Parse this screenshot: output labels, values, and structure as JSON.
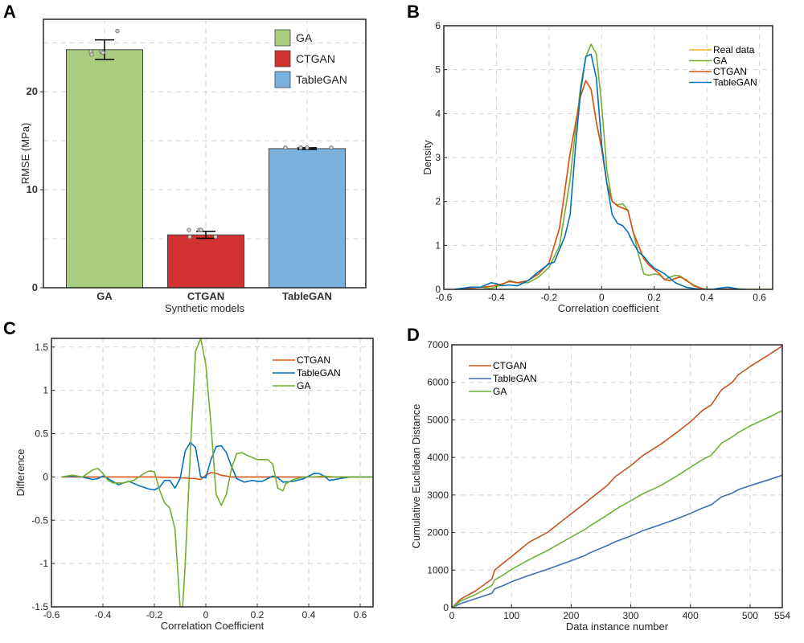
{
  "chart_data": [
    {
      "panel": "A",
      "type": "bar",
      "title": "",
      "xlabel": "Synthetic models",
      "ylabel": "RMSE (MPa)",
      "categories": [
        "GA",
        "CTGAN",
        "TableGAN"
      ],
      "values": [
        24.3,
        5.4,
        14.2
      ],
      "errors": [
        1.0,
        0.35,
        0.08
      ],
      "points": [
        [
          24.1,
          24.1,
          24.0,
          23.8,
          26.2
        ],
        [
          5.9,
          5.9,
          5.9,
          5.2,
          5.2
        ],
        [
          14.3,
          14.3,
          14.3,
          14.3,
          14.3
        ]
      ],
      "colors": [
        "#a9cd7e",
        "#d33330",
        "#7ab1dd"
      ],
      "ylim": [
        0,
        27.4
      ],
      "yticks": [
        0,
        10,
        20
      ],
      "legend": [
        "GA",
        "CTGAN",
        "TableGAN"
      ],
      "legend_position": "top-right",
      "grid": true
    },
    {
      "panel": "B",
      "type": "line",
      "xlabel": "Correlation coefficient",
      "ylabel": "Density",
      "xlim": [
        -0.6,
        0.65
      ],
      "ylim": [
        0,
        6
      ],
      "xticks": [
        -0.6,
        -0.4,
        -0.2,
        0,
        0.2,
        0.4,
        0.6
      ],
      "yticks": [
        0,
        1,
        2,
        3,
        4,
        5,
        6
      ],
      "legend_position": "top-right",
      "grid": true,
      "series": [
        {
          "name": "Real data",
          "color": "#edb120",
          "x": [
            -0.56,
            -0.5,
            -0.46,
            -0.42,
            -0.38,
            -0.35,
            -0.32,
            -0.28,
            -0.24,
            -0.2,
            -0.16,
            -0.12,
            -0.08,
            -0.06,
            -0.04,
            -0.02,
            0,
            0.02,
            0.04,
            0.06,
            0.08,
            0.1,
            0.12,
            0.14,
            0.16,
            0.18,
            0.2,
            0.22,
            0.24,
            0.26,
            0.28,
            0.3,
            0.32,
            0.35,
            0.38,
            0.4,
            0.45,
            0.5,
            0.55,
            0.6,
            0.65
          ],
          "y": [
            0,
            0.03,
            0.05,
            0.07,
            0.12,
            0.18,
            0.15,
            0.2,
            0.35,
            0.6,
            1.4,
            3.1,
            4.4,
            4.75,
            4.55,
            3.8,
            3.2,
            2.4,
            2.0,
            1.9,
            1.85,
            1.8,
            1.3,
            1.0,
            0.7,
            0.55,
            0.45,
            0.35,
            0.22,
            0.2,
            0.25,
            0.28,
            0.22,
            0.08,
            0.02,
            0,
            0,
            0.02,
            0,
            0,
            0
          ]
        },
        {
          "name": "GA",
          "color": "#77ac30",
          "x": [
            -0.56,
            -0.5,
            -0.46,
            -0.42,
            -0.38,
            -0.35,
            -0.32,
            -0.28,
            -0.24,
            -0.2,
            -0.16,
            -0.12,
            -0.1,
            -0.08,
            -0.06,
            -0.04,
            -0.02,
            0,
            0.02,
            0.04,
            0.06,
            0.08,
            0.1,
            0.12,
            0.14,
            0.16,
            0.18,
            0.2,
            0.22,
            0.24,
            0.26,
            0.28,
            0.3,
            0.32,
            0.35,
            0.38,
            0.4,
            0.5,
            0.55
          ],
          "y": [
            0,
            0.03,
            0.05,
            0.02,
            0.1,
            0.2,
            0.15,
            0.15,
            0.28,
            0.5,
            1.0,
            2.5,
            3.6,
            4.6,
            5.3,
            5.58,
            5.35,
            4.2,
            2.7,
            2.0,
            1.92,
            1.95,
            1.8,
            1.3,
            0.8,
            0.35,
            0.32,
            0.35,
            0.33,
            0.22,
            0.28,
            0.32,
            0.3,
            0.2,
            0.1,
            0.02,
            0,
            0,
            0
          ]
        },
        {
          "name": "CTGAN",
          "color": "#d95319",
          "x": [
            -0.56,
            -0.5,
            -0.46,
            -0.42,
            -0.38,
            -0.35,
            -0.32,
            -0.28,
            -0.24,
            -0.2,
            -0.16,
            -0.12,
            -0.08,
            -0.06,
            -0.04,
            -0.02,
            0,
            0.02,
            0.04,
            0.06,
            0.08,
            0.1,
            0.12,
            0.14,
            0.16,
            0.18,
            0.2,
            0.22,
            0.24,
            0.26,
            0.28,
            0.3,
            0.32,
            0.35,
            0.38,
            0.4,
            0.45,
            0.5,
            0.55
          ],
          "y": [
            0,
            0.03,
            0.05,
            0.07,
            0.12,
            0.18,
            0.15,
            0.2,
            0.35,
            0.6,
            1.4,
            3.1,
            4.4,
            4.75,
            4.55,
            3.8,
            3.2,
            2.4,
            2.0,
            1.9,
            1.85,
            1.8,
            1.3,
            1.0,
            0.7,
            0.55,
            0.45,
            0.35,
            0.22,
            0.2,
            0.25,
            0.28,
            0.22,
            0.08,
            0.02,
            0,
            0,
            0.01,
            0
          ]
        },
        {
          "name": "TableGAN",
          "color": "#0072bd",
          "x": [
            -0.56,
            -0.5,
            -0.46,
            -0.42,
            -0.4,
            -0.38,
            -0.35,
            -0.32,
            -0.28,
            -0.24,
            -0.2,
            -0.18,
            -0.14,
            -0.12,
            -0.1,
            -0.08,
            -0.06,
            -0.04,
            -0.02,
            0,
            0.02,
            0.04,
            0.06,
            0.08,
            0.1,
            0.12,
            0.14,
            0.16,
            0.18,
            0.2,
            0.22,
            0.24,
            0.26,
            0.28,
            0.3,
            0.32,
            0.35,
            0.38,
            0.42,
            0.45,
            0.48,
            0.52,
            0.55
          ],
          "y": [
            0,
            0.05,
            0.05,
            0.15,
            0.13,
            0.08,
            0.1,
            0.08,
            0.2,
            0.4,
            0.58,
            0.62,
            1.2,
            1.7,
            3.2,
            4.5,
            5.3,
            5.35,
            4.8,
            3.3,
            2.4,
            1.7,
            1.5,
            1.45,
            1.3,
            1.05,
            0.85,
            0.75,
            0.6,
            0.48,
            0.42,
            0.35,
            0.25,
            0.15,
            0.1,
            0.05,
            0.02,
            0,
            0,
            0.03,
            0.05,
            0.01,
            0
          ]
        }
      ]
    },
    {
      "panel": "C",
      "type": "line",
      "xlabel": "Correlation Coefficient",
      "ylabel": "Difference",
      "xlim": [
        -0.6,
        0.65
      ],
      "ylim": [
        -1.5,
        1.6
      ],
      "xticks": [
        -0.6,
        -0.4,
        -0.2,
        0,
        0.2,
        0.4,
        0.6
      ],
      "yticks": [
        -1.5,
        -1,
        -0.5,
        0,
        0.5,
        1,
        1.5
      ],
      "ytick_labels": [
        "-1.5",
        "-1",
        "-0.5",
        "0",
        "0.5",
        "1",
        "1.5"
      ],
      "legend_position": "top-right",
      "grid": true,
      "series": [
        {
          "name": "CTGAN",
          "color": "#d95319",
          "x": [
            -0.56,
            -0.4,
            -0.2,
            -0.1,
            -0.04,
            -0.02,
            0,
            0.02,
            0.04,
            0.06,
            0.08,
            0.1,
            0.2,
            0.4,
            0.56,
            0.65
          ],
          "y": [
            0,
            0,
            0,
            -0.01,
            -0.02,
            -0.03,
            0.02,
            0.05,
            0.04,
            0.02,
            0.01,
            0,
            0,
            0,
            0,
            0
          ]
        },
        {
          "name": "TableGAN",
          "color": "#0072bd",
          "x": [
            -0.56,
            -0.52,
            -0.48,
            -0.44,
            -0.42,
            -0.4,
            -0.38,
            -0.34,
            -0.3,
            -0.26,
            -0.22,
            -0.2,
            -0.18,
            -0.16,
            -0.14,
            -0.12,
            -0.1,
            -0.08,
            -0.06,
            -0.04,
            -0.02,
            0,
            0.02,
            0.04,
            0.06,
            0.08,
            0.1,
            0.12,
            0.15,
            0.18,
            0.2,
            0.22,
            0.24,
            0.26,
            0.28,
            0.3,
            0.34,
            0.38,
            0.4,
            0.42,
            0.44,
            0.46,
            0.48,
            0.52,
            0.56,
            0.65
          ],
          "y": [
            0,
            0.01,
            0,
            -0.03,
            -0.02,
            0.01,
            -0.02,
            -0.09,
            -0.05,
            -0.1,
            -0.14,
            -0.15,
            -0.12,
            -0.04,
            -0.04,
            -0.13,
            -0.02,
            0.3,
            0.4,
            0.34,
            0,
            -0.01,
            0.2,
            0.35,
            0.36,
            0.28,
            0.12,
            -0.02,
            -0.06,
            -0.04,
            -0.05,
            -0.05,
            -0.02,
            0.01,
            -0.01,
            -0.06,
            -0.05,
            -0.02,
            0.01,
            0.04,
            0.04,
            0.01,
            -0.04,
            -0.02,
            0,
            0
          ]
        },
        {
          "name": "GA",
          "color": "#77ac30",
          "x": [
            -0.56,
            -0.52,
            -0.48,
            -0.44,
            -0.42,
            -0.4,
            -0.38,
            -0.36,
            -0.32,
            -0.28,
            -0.24,
            -0.22,
            -0.2,
            -0.18,
            -0.16,
            -0.14,
            -0.12,
            -0.1,
            -0.09,
            -0.08,
            -0.06,
            -0.04,
            -0.02,
            0,
            0.02,
            0.04,
            0.06,
            0.08,
            0.1,
            0.12,
            0.14,
            0.16,
            0.2,
            0.24,
            0.26,
            0.28,
            0.3,
            0.31,
            0.34,
            0.38,
            0.42,
            0.46,
            0.5,
            0.56,
            0.65
          ],
          "y": [
            0,
            0.02,
            0,
            0.08,
            0.1,
            0.04,
            -0.04,
            -0.07,
            -0.07,
            -0.04,
            0.04,
            0.07,
            0.06,
            -0.15,
            -0.3,
            -0.36,
            -0.6,
            -1.5,
            -1.5,
            -1.0,
            0.3,
            1.45,
            1.6,
            1.3,
            0.6,
            -0.2,
            -0.33,
            -0.2,
            0.1,
            0.27,
            0.28,
            0.25,
            0.2,
            0.2,
            0.15,
            -0.13,
            -0.16,
            -0.08,
            -0.03,
            0,
            0,
            0.01,
            0,
            0,
            0
          ]
        }
      ]
    },
    {
      "panel": "D",
      "type": "line",
      "xlabel": "Data instance number",
      "ylabel": "Cumulative Euclidean Distance",
      "xlim": [
        0,
        554
      ],
      "ylim": [
        0,
        7000
      ],
      "xticks": [
        0,
        100,
        200,
        300,
        400,
        500,
        554
      ],
      "yticks": [
        0,
        1000,
        2000,
        3000,
        4000,
        5000,
        6000,
        7000
      ],
      "legend_position": "top-left",
      "grid": true,
      "series": [
        {
          "name": "CTGAN",
          "color": "#c5531c",
          "x": [
            0,
            15,
            40,
            67,
            72,
            85,
            100,
            130,
            160,
            200,
            225,
            230,
            260,
            275,
            300,
            320,
            350,
            380,
            400,
            420,
            435,
            452,
            470,
            480,
            500,
            530,
            554
          ],
          "y": [
            0,
            230,
            450,
            760,
            1000,
            1170,
            1360,
            1750,
            2000,
            2500,
            2800,
            2870,
            3250,
            3500,
            3780,
            4050,
            4350,
            4700,
            4950,
            5250,
            5400,
            5800,
            6000,
            6200,
            6420,
            6720,
            6970
          ]
        },
        {
          "name": "TableGAN",
          "color": "#3e6fb0",
          "x": [
            0,
            15,
            40,
            67,
            72,
            85,
            100,
            130,
            160,
            200,
            225,
            230,
            260,
            275,
            300,
            320,
            350,
            380,
            400,
            420,
            435,
            452,
            470,
            480,
            500,
            530,
            554
          ],
          "y": [
            0,
            110,
            240,
            380,
            500,
            580,
            690,
            860,
            1020,
            1250,
            1400,
            1450,
            1650,
            1760,
            1910,
            2050,
            2210,
            2380,
            2510,
            2650,
            2740,
            2950,
            3050,
            3140,
            3250,
            3400,
            3530
          ]
        },
        {
          "name": "GA",
          "color": "#6fb23a",
          "x": [
            0,
            15,
            40,
            67,
            72,
            85,
            100,
            130,
            160,
            200,
            225,
            230,
            260,
            275,
            300,
            320,
            350,
            380,
            400,
            420,
            435,
            452,
            470,
            480,
            500,
            530,
            554
          ],
          "y": [
            0,
            180,
            350,
            590,
            740,
            860,
            1020,
            1280,
            1520,
            1880,
            2100,
            2160,
            2460,
            2620,
            2850,
            3030,
            3250,
            3530,
            3740,
            3940,
            4060,
            4380,
            4550,
            4660,
            4840,
            5060,
            5250
          ]
        }
      ]
    }
  ],
  "panels": {
    "A": {
      "letter": "A"
    },
    "B": {
      "letter": "B"
    },
    "C": {
      "letter": "C"
    },
    "D": {
      "letter": "D"
    }
  }
}
